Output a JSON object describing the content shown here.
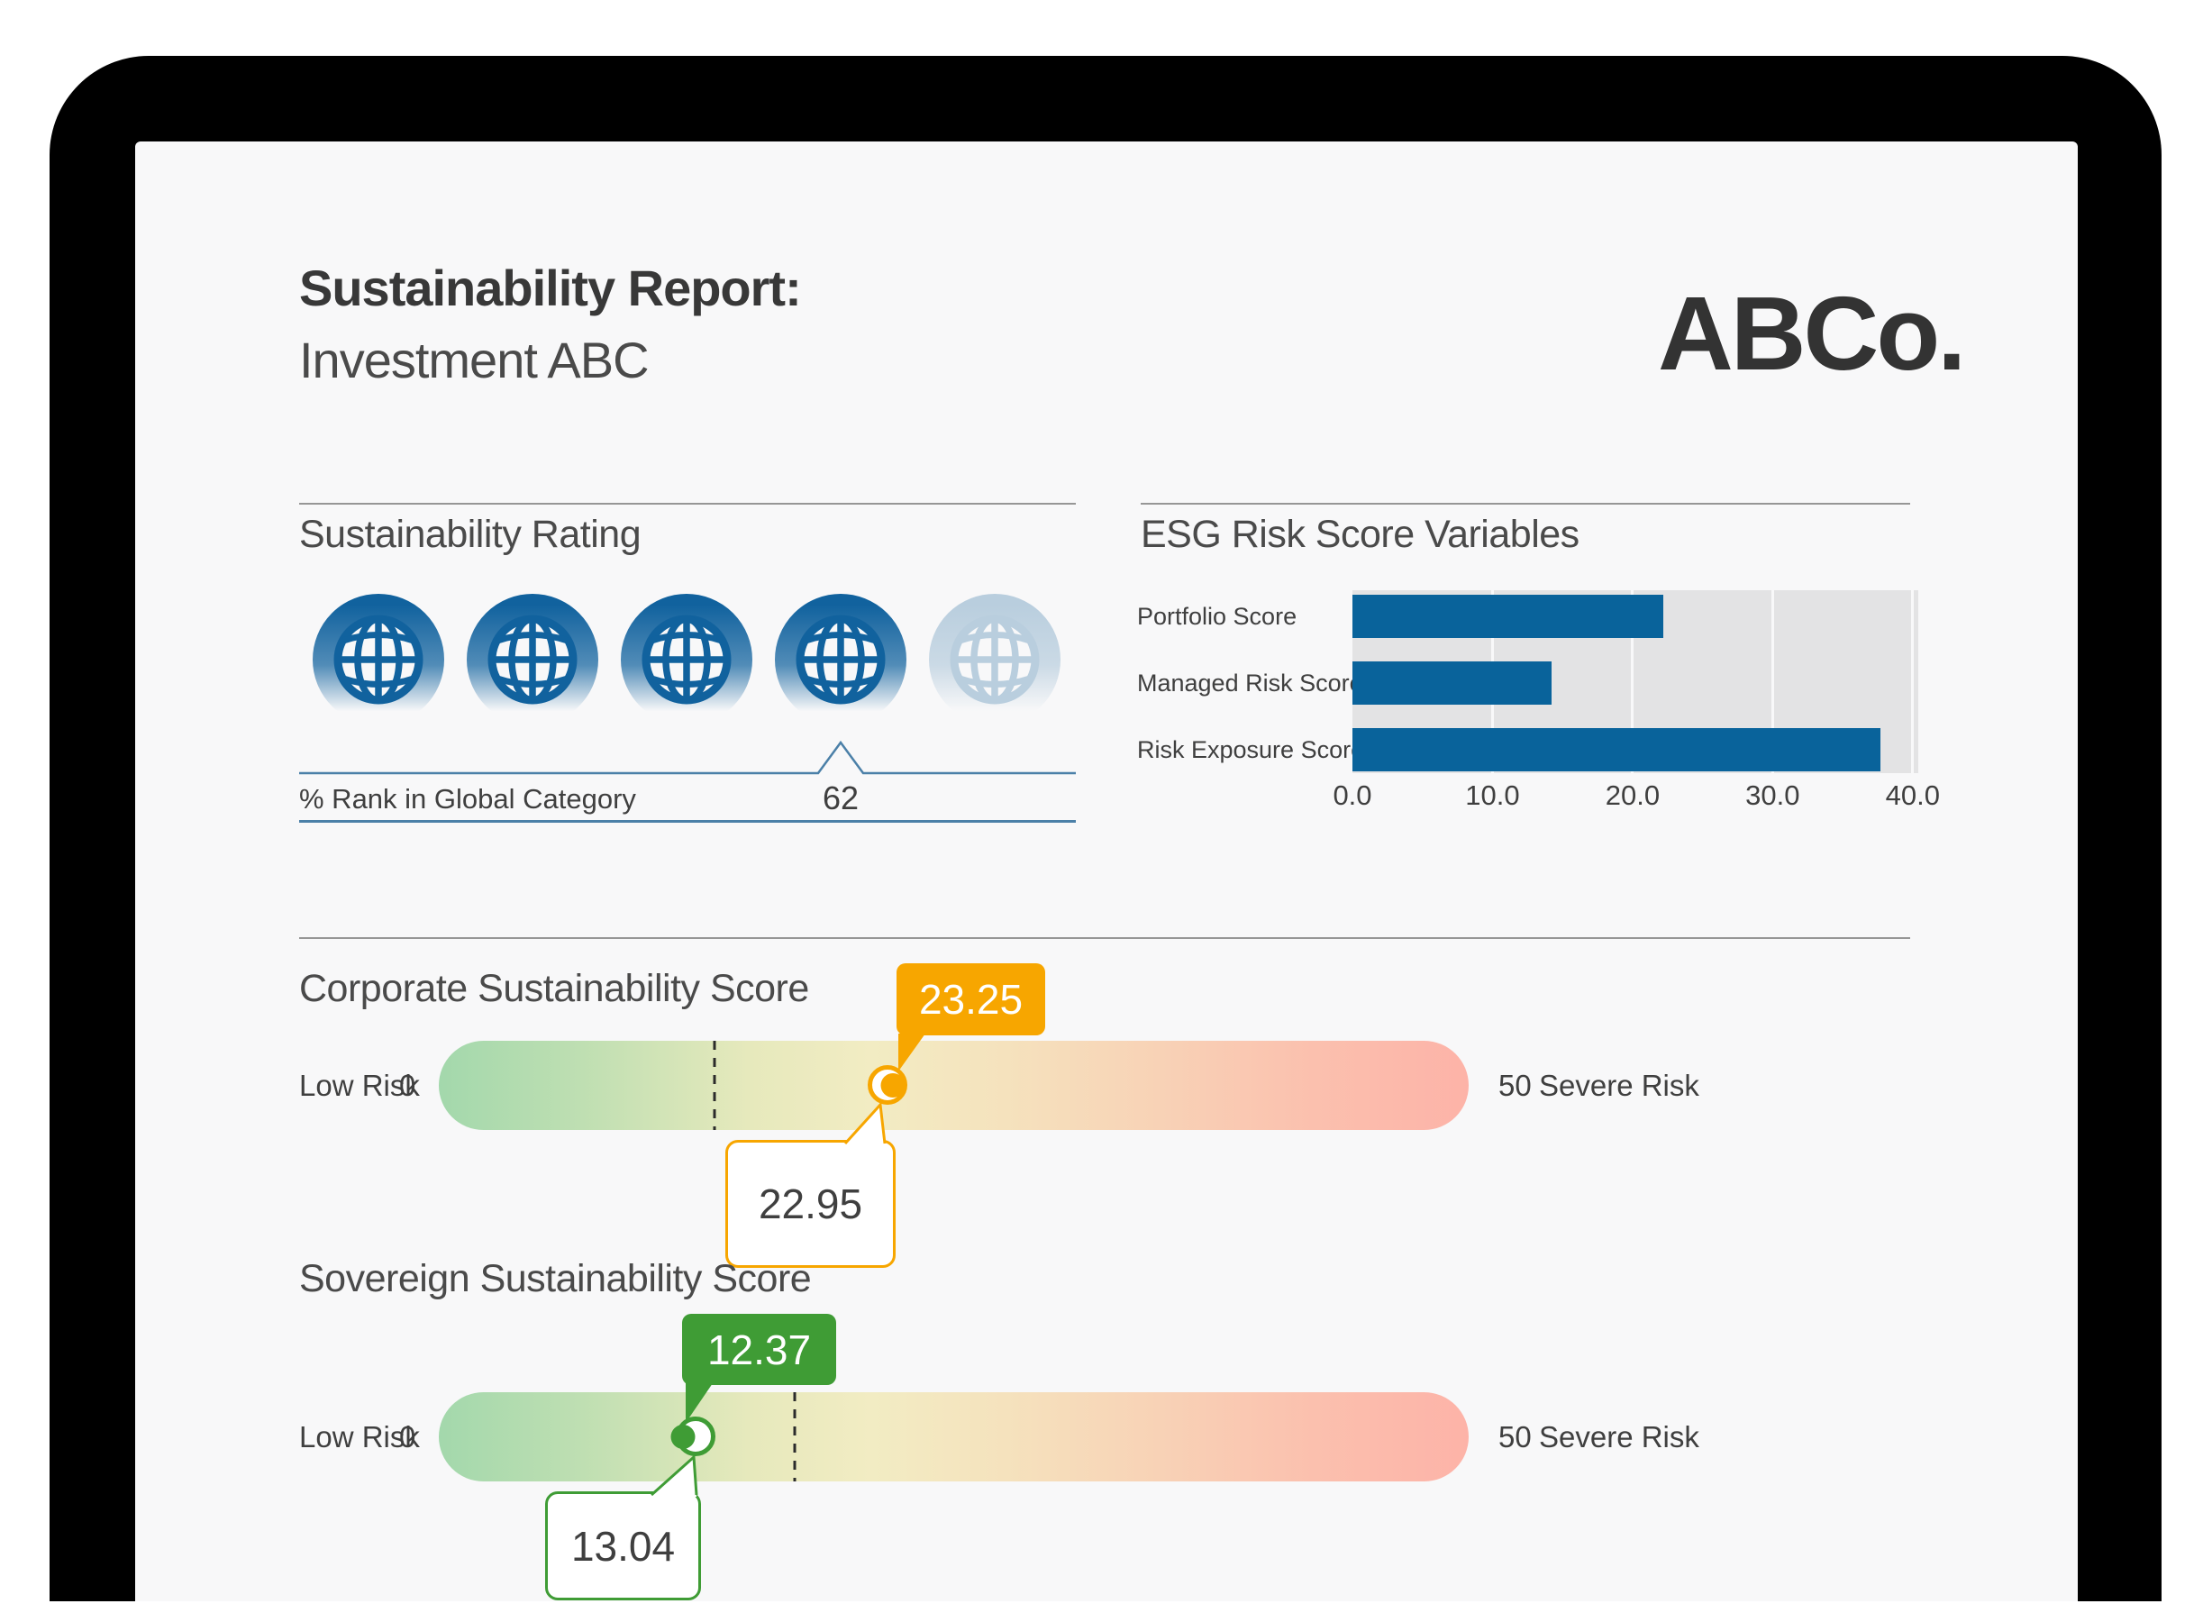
{
  "report": {
    "title_line1": "Sustainability Report:",
    "title_line2": "Investment ABC",
    "logo": "ABCo."
  },
  "rating": {
    "section_title": "Sustainability Rating",
    "globes_total": 5,
    "globes_filled": 4,
    "pointer_under_globe": 4,
    "rank_label": "% Rank in Global Category",
    "rank_value": "62"
  },
  "chart_data": {
    "type": "bar",
    "orientation": "horizontal",
    "title": "ESG Risk Score Variables",
    "categories": [
      "Portfolio Score",
      "Managed Risk Score",
      "Risk Exposure Score"
    ],
    "values": [
      22.2,
      14.2,
      37.7
    ],
    "xticks": [
      0,
      10,
      20,
      30,
      40
    ],
    "xtick_labels": [
      "0.0",
      "10.0",
      "20.0",
      "30.0",
      "40.0"
    ],
    "xlim": [
      0,
      40.4
    ],
    "grid": "white vertical gridlines on gray track",
    "legend": "none",
    "bar_color": "#09639B",
    "track_color": "#E3E3E4"
  },
  "corporate_slider": {
    "section_title": "Corporate Sustainability Score",
    "low_label": "Low Risk",
    "min_label": "0",
    "max_label": "50",
    "high_label": "Severe Risk",
    "scale_min": 0,
    "scale_max": 50,
    "top_value": "23.25",
    "bottom_value": "22.95",
    "dot_value": 23.25,
    "ring_value": 22.95,
    "dot_pct": 44.1,
    "ring_pct": 43.6,
    "benchmark_pct": 26.8,
    "accent": "#F7A600"
  },
  "sovereign_slider": {
    "section_title": "Sovereign Sustainability Score",
    "low_label": "Low Risk",
    "min_label": "0",
    "max_label": "50",
    "high_label": "Severe Risk",
    "scale_min": 0,
    "scale_max": 50,
    "top_value": "12.37",
    "bottom_value": "13.04",
    "dot_value": 12.37,
    "ring_value": 13.04,
    "dot_pct": 23.7,
    "ring_pct": 24.9,
    "benchmark_pct": 34.6,
    "accent": "#3F9C35"
  },
  "colors": {
    "accent_orange": "#F7A600",
    "accent_green": "#3F9C35",
    "bar_blue": "#09639B",
    "chart_track_gray": "#E3E3E4",
    "globe_blue": "#11629E",
    "globe_faded": "#B9CEDE",
    "rule_blue": "#4B80A8",
    "screen_bg": "#F8F8F9",
    "frame_black": "#000000",
    "heading_gray": "#4A4A4A",
    "text_gray": "#3F3F3F"
  }
}
